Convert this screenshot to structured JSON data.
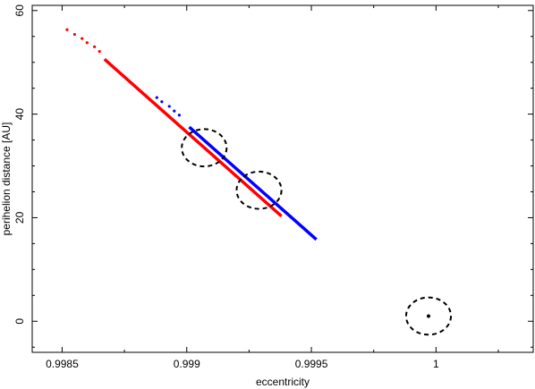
{
  "chart_data": {
    "type": "scatter",
    "title": "",
    "xlabel": "eccentricity",
    "ylabel": "perihelion distance [AU]",
    "xlim": [
      0.99838,
      1.00039
    ],
    "ylim": [
      -6,
      61
    ],
    "x_ticks": [
      {
        "value": 0.9985,
        "label": "0.9985"
      },
      {
        "value": 0.999,
        "label": "0.999"
      },
      {
        "value": 0.9995,
        "label": "0.9995"
      },
      {
        "value": 1.0,
        "label": "1"
      }
    ],
    "y_ticks": [
      {
        "value": 0,
        "label": "0"
      },
      {
        "value": 20,
        "label": "20"
      },
      {
        "value": 40,
        "label": "40"
      },
      {
        "value": 60,
        "label": "60"
      }
    ],
    "grid": false,
    "legend": "none",
    "series": [
      {
        "color": "#ff0000",
        "dotted": [
          [
            0.99852,
            56.3
          ],
          [
            0.99855,
            55.4
          ],
          [
            0.99858,
            54.6
          ],
          [
            0.9986,
            53.8
          ],
          [
            0.99863,
            53.0
          ],
          [
            0.99865,
            52.1
          ]
        ],
        "solid": [
          [
            0.99867,
            50.6
          ],
          [
            0.99938,
            20.3
          ]
        ]
      },
      {
        "color": "#0000ff",
        "dotted": [
          [
            0.99888,
            43.2
          ],
          [
            0.9989,
            42.4
          ],
          [
            0.99893,
            41.5
          ],
          [
            0.99895,
            40.6
          ],
          [
            0.99897,
            39.8
          ]
        ],
        "solid": [
          [
            0.99901,
            37.5
          ],
          [
            0.99952,
            15.8
          ]
        ]
      }
    ],
    "circles": [
      {
        "x": 0.99907,
        "y": 33.5,
        "radius_x": 9e-05,
        "radius_y": 3.6
      },
      {
        "x": 0.99929,
        "y": 25.3,
        "radius_x": 9e-05,
        "radius_y": 3.6
      },
      {
        "x": 0.99997,
        "y": 1.0,
        "radius_x": 9e-05,
        "radius_y": 3.6
      }
    ],
    "points": [
      {
        "x": 0.99997,
        "y": 1.0,
        "color": "#000000"
      }
    ]
  }
}
